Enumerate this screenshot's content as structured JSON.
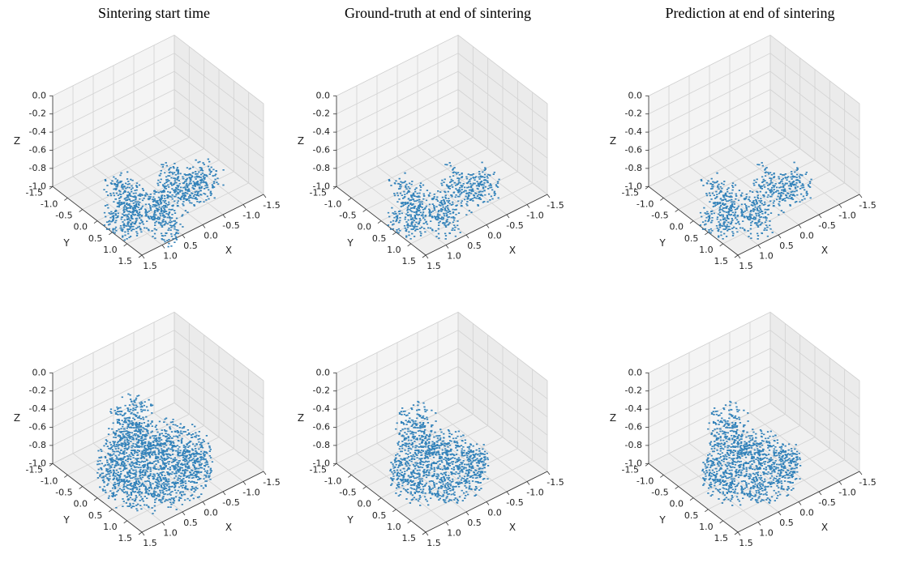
{
  "chart_data": [
    {
      "type": "scatter3d",
      "title": "Sintering start time",
      "xlabel": "X",
      "ylabel": "Y",
      "zlabel": "Z",
      "color": "#1f77b4",
      "xlim": [
        -1.5,
        1.5
      ],
      "ylim": [
        -1.5,
        1.5
      ],
      "zlim": [
        -1,
        0
      ],
      "xticks": [
        -1.5,
        {
          "value": -1,
          "label": "-1.0"
        },
        -0.5,
        {
          "value": 0,
          "label": "0.0"
        },
        0.5,
        {
          "value": 1,
          "label": "1.0"
        },
        1.5
      ],
      "yticks": [
        -1.5,
        {
          "value": -1,
          "label": "-1.0"
        },
        -0.5,
        {
          "value": 0,
          "label": "0.0"
        },
        0.5,
        {
          "value": 1,
          "label": "1.0"
        },
        1.5
      ],
      "zticks": [
        {
          "value": 0,
          "label": "0.0"
        },
        -0.2,
        -0.4,
        -0.6,
        -0.8,
        {
          "value": -1,
          "label": "-1.0"
        }
      ]
    },
    {
      "type": "scatter3d",
      "title": "Ground-truth at end of sintering",
      "xlabel": "X",
      "ylabel": "Y",
      "zlabel": "Z",
      "color": "#1f77b4",
      "xlim": [
        -1.5,
        1.5
      ],
      "ylim": [
        -1.5,
        1.5
      ],
      "zlim": [
        -1,
        0
      ],
      "xticks": [
        -1.5,
        {
          "value": -1,
          "label": "-1.0"
        },
        -0.5,
        {
          "value": 0,
          "label": "0.0"
        },
        0.5,
        {
          "value": 1,
          "label": "1.0"
        },
        1.5
      ],
      "yticks": [
        -1.5,
        {
          "value": -1,
          "label": "-1.0"
        },
        -0.5,
        {
          "value": 0,
          "label": "0.0"
        },
        0.5,
        {
          "value": 1,
          "label": "1.0"
        },
        1.5
      ],
      "zticks": [
        {
          "value": 0,
          "label": "0.0"
        },
        -0.2,
        -0.4,
        -0.6,
        -0.8,
        {
          "value": -1,
          "label": "-1.0"
        }
      ]
    },
    {
      "type": "scatter3d",
      "title": "Prediction at end of sintering",
      "xlabel": "X",
      "ylabel": "Y",
      "zlabel": "Z",
      "color": "#1f77b4",
      "xlim": [
        -1.5,
        1.5
      ],
      "ylim": [
        -1.5,
        1.5
      ],
      "zlim": [
        -1,
        0
      ],
      "xticks": [
        -1.5,
        {
          "value": -1,
          "label": "-1.0"
        },
        -0.5,
        {
          "value": 0,
          "label": "0.0"
        },
        0.5,
        {
          "value": 1,
          "label": "1.0"
        },
        1.5
      ],
      "yticks": [
        -1.5,
        {
          "value": -1,
          "label": "-1.0"
        },
        -0.5,
        {
          "value": 0,
          "label": "0.0"
        },
        0.5,
        {
          "value": 1,
          "label": "1.0"
        },
        1.5
      ],
      "zticks": [
        {
          "value": 0,
          "label": "0.0"
        },
        -0.2,
        -0.4,
        -0.6,
        -0.8,
        {
          "value": -1,
          "label": "-1.0"
        }
      ]
    },
    {
      "type": "scatter3d",
      "xlabel": "X",
      "ylabel": "Y",
      "zlabel": "Z",
      "color": "#1f77b4",
      "xlim": [
        -1.5,
        1.5
      ],
      "ylim": [
        -1.5,
        1.5
      ],
      "zlim": [
        -1,
        0
      ],
      "xticks": [
        -1.5,
        {
          "value": -1,
          "label": "-1.0"
        },
        -0.5,
        {
          "value": 0,
          "label": "0.0"
        },
        0.5,
        {
          "value": 1,
          "label": "1.0"
        },
        1.5
      ],
      "yticks": [
        -1.5,
        {
          "value": -1,
          "label": "-1.0"
        },
        -0.5,
        {
          "value": 0,
          "label": "0.0"
        },
        0.5,
        {
          "value": 1,
          "label": "1.0"
        },
        1.5
      ],
      "zticks": [
        {
          "value": 0,
          "label": "0.0"
        },
        -0.2,
        -0.4,
        -0.6,
        -0.8,
        {
          "value": -1,
          "label": "-1.0"
        }
      ]
    },
    {
      "type": "scatter3d",
      "xlabel": "X",
      "ylabel": "Y",
      "zlabel": "Z",
      "color": "#1f77b4",
      "xlim": [
        -1.5,
        1.5
      ],
      "ylim": [
        -1.5,
        1.5
      ],
      "zlim": [
        -1,
        0
      ],
      "xticks": [
        -1.5,
        {
          "value": -1,
          "label": "-1.0"
        },
        -0.5,
        {
          "value": 0,
          "label": "0.0"
        },
        0.5,
        {
          "value": 1,
          "label": "1.0"
        },
        1.5
      ],
      "yticks": [
        -1.5,
        {
          "value": -1,
          "label": "-1.0"
        },
        -0.5,
        {
          "value": 0,
          "label": "0.0"
        },
        0.5,
        {
          "value": 1,
          "label": "1.0"
        },
        1.5
      ],
      "zticks": [
        {
          "value": 0,
          "label": "0.0"
        },
        -0.2,
        -0.4,
        -0.6,
        -0.8,
        {
          "value": -1,
          "label": "-1.0"
        }
      ]
    },
    {
      "type": "scatter3d",
      "xlabel": "X",
      "ylabel": "Y",
      "zlabel": "Z",
      "color": "#1f77b4",
      "xlim": [
        -1.5,
        1.5
      ],
      "ylim": [
        -1.5,
        1.5
      ],
      "zlim": [
        -1,
        0
      ],
      "xticks": [
        -1.5,
        {
          "value": -1,
          "label": "-1.0"
        },
        -0.5,
        {
          "value": 0,
          "label": "0.0"
        },
        0.5,
        {
          "value": 1,
          "label": "1.0"
        },
        1.5
      ],
      "yticks": [
        -1.5,
        {
          "value": -1,
          "label": "-1.0"
        },
        -0.5,
        {
          "value": 0,
          "label": "0.0"
        },
        0.5,
        {
          "value": 1,
          "label": "1.0"
        },
        1.5
      ],
      "zticks": [
        {
          "value": 0,
          "label": "0.0"
        },
        -0.2,
        -0.4,
        -0.6,
        -0.8,
        {
          "value": -1,
          "label": "-1.0"
        }
      ]
    }
  ]
}
